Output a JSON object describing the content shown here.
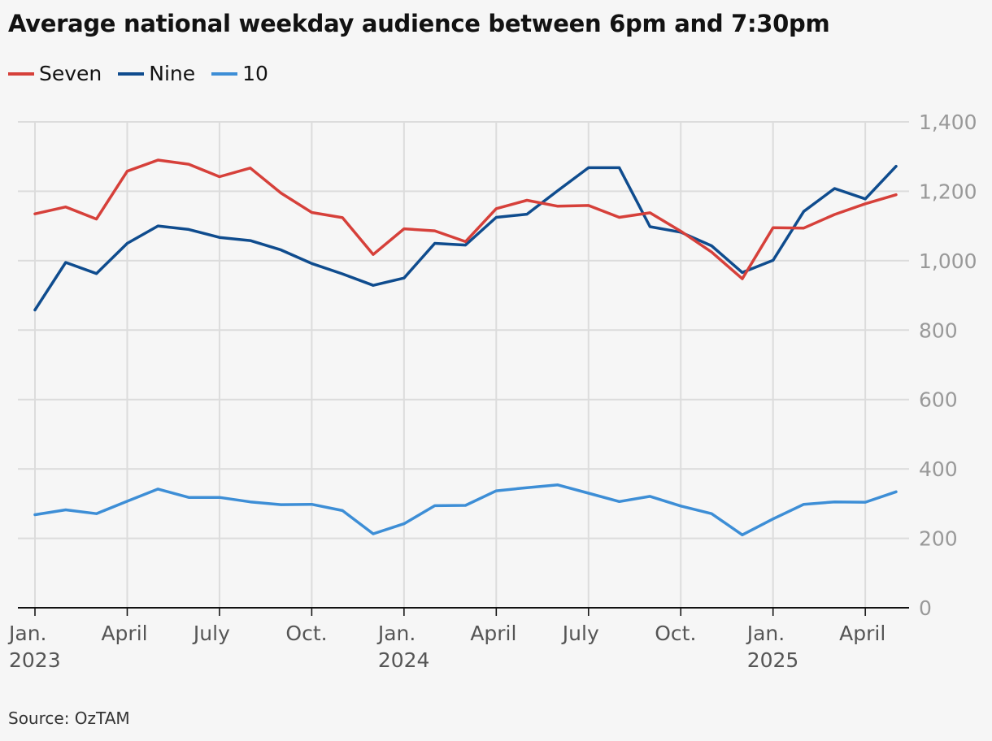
{
  "header": {
    "title": "Average national weekday audience between 6pm and 7:30pm"
  },
  "footer": {
    "source": "Source: OzTAM"
  },
  "chart_data": {
    "type": "line",
    "title": "Average national weekday audience between 6pm and 7:30pm",
    "xlabel": "",
    "ylabel": "",
    "ylim": [
      0,
      1400
    ],
    "y_ticks": [
      0,
      200,
      400,
      600,
      800,
      1000,
      1200,
      1400
    ],
    "y_tick_labels": [
      "0",
      "200",
      "400",
      "600",
      "800",
      "1,000",
      "1,200",
      "1,400"
    ],
    "x": [
      "2023-01",
      "2023-02",
      "2023-03",
      "2023-04",
      "2023-05",
      "2023-06",
      "2023-07",
      "2023-08",
      "2023-09",
      "2023-10",
      "2023-11",
      "2023-12",
      "2024-01",
      "2024-02",
      "2024-03",
      "2024-04",
      "2024-05",
      "2024-06",
      "2024-07",
      "2024-08",
      "2024-09",
      "2024-10",
      "2024-11",
      "2024-12",
      "2025-01",
      "2025-02",
      "2025-03",
      "2025-04",
      "2025-05"
    ],
    "x_ticks": [
      {
        "date": "2023-01",
        "label": "Jan.",
        "year": "2023"
      },
      {
        "date": "2023-04",
        "label": "April",
        "year": ""
      },
      {
        "date": "2023-07",
        "label": "July",
        "year": ""
      },
      {
        "date": "2023-10",
        "label": "Oct.",
        "year": ""
      },
      {
        "date": "2024-01",
        "label": "Jan.",
        "year": "2024"
      },
      {
        "date": "2024-04",
        "label": "April",
        "year": ""
      },
      {
        "date": "2024-07",
        "label": "July",
        "year": ""
      },
      {
        "date": "2024-10",
        "label": "Oct.",
        "year": ""
      },
      {
        "date": "2025-01",
        "label": "Jan.",
        "year": "2025"
      },
      {
        "date": "2025-04",
        "label": "April",
        "year": ""
      }
    ],
    "grid": true,
    "legend_position": "top-left",
    "series": [
      {
        "name": "Seven",
        "color": "#d6403a",
        "values": [
          1135,
          1155,
          1120,
          1258,
          1290,
          1278,
          1242,
          1267,
          1195,
          1139,
          1124,
          1018,
          1092,
          1086,
          1055,
          1150,
          1174,
          1157,
          1159,
          1125,
          1138,
          1085,
          1025,
          948,
          1095,
          1094,
          1133,
          1164,
          1190
        ]
      },
      {
        "name": "Nine",
        "color": "#0f4c8e",
        "values": [
          858,
          995,
          963,
          1050,
          1100,
          1090,
          1067,
          1058,
          1031,
          992,
          962,
          929,
          950,
          1050,
          1045,
          1125,
          1134,
          1202,
          1268,
          1268,
          1098,
          1082,
          1043,
          966,
          1001,
          1142,
          1208,
          1178,
          1272
        ]
      },
      {
        "name": "10",
        "color": "#3d8ed6",
        "values": [
          268,
          282,
          271,
          307,
          342,
          318,
          318,
          305,
          297,
          298,
          280,
          213,
          242,
          294,
          295,
          337,
          346,
          354,
          330,
          306,
          321,
          293,
          271,
          210,
          256,
          298,
          305,
          304,
          334
        ]
      }
    ]
  }
}
